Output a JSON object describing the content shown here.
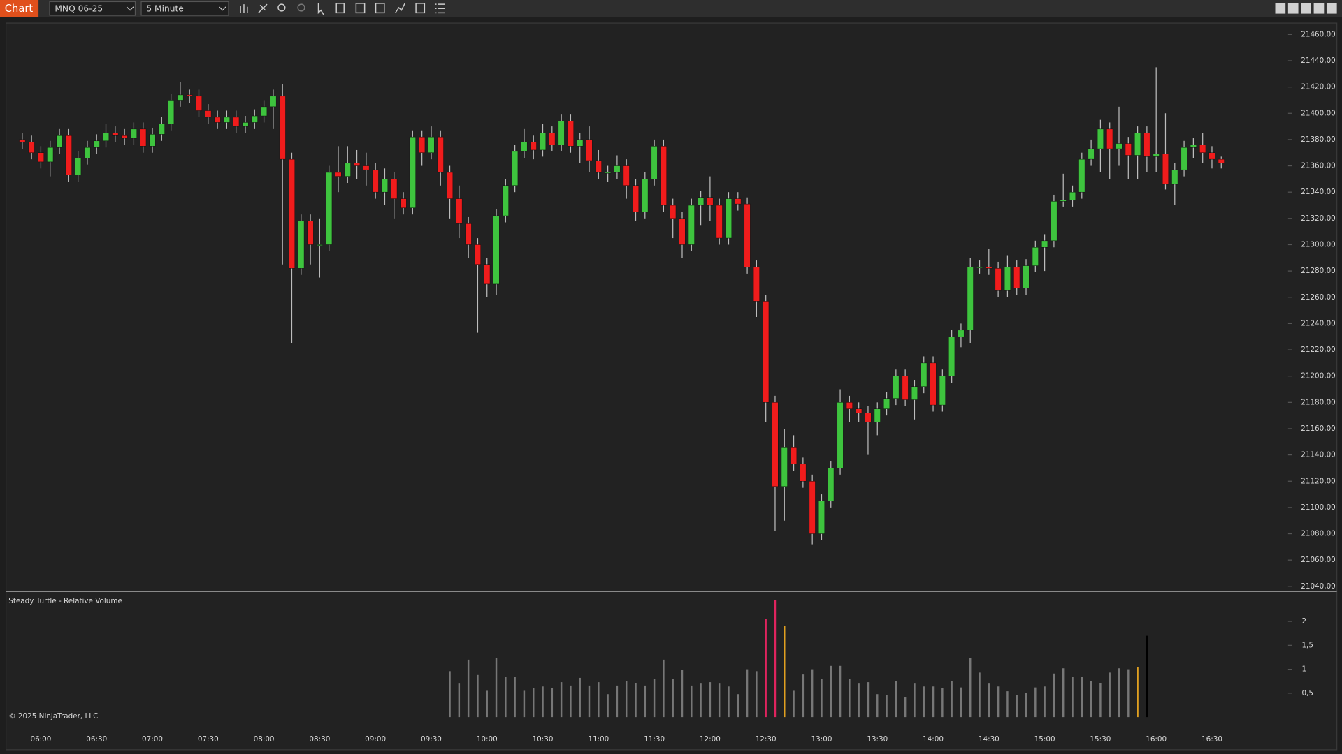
{
  "toolbar": {
    "tab": "Chart",
    "instrument": "MNQ 06-25",
    "interval": "5 Minute"
  },
  "footer": "© 2025 NinjaTrader, LLC",
  "chart_data": [
    {
      "type": "candlestick",
      "categories": [
        null,
        null,
        "06:00",
        null,
        null,
        null,
        null,
        null,
        "06:30",
        null,
        null,
        null,
        null,
        null,
        "07:00",
        null,
        null,
        null,
        null,
        null,
        "07:30",
        null,
        null,
        null,
        null,
        null,
        "08:00",
        null,
        null,
        null,
        null,
        null,
        "08:30",
        null,
        null,
        null,
        null,
        null,
        "09:00",
        null,
        null,
        null,
        null,
        null,
        "09:30",
        null,
        null,
        null,
        null,
        null,
        "10:00",
        null,
        null,
        null,
        null,
        null,
        "10:30",
        null,
        null,
        null,
        null,
        null,
        "11:00",
        null,
        null,
        null,
        null,
        null,
        "11:30",
        null,
        null,
        null,
        null,
        null,
        "12:00",
        null,
        null,
        null,
        null,
        null,
        "12:30",
        null,
        null,
        null,
        null,
        null,
        "13:00",
        null,
        null,
        null,
        null,
        null,
        "13:30",
        null,
        null,
        null,
        null,
        null,
        "14:00",
        null,
        null,
        null,
        null,
        null,
        "14:30",
        null,
        null,
        null,
        null,
        null,
        "15:00",
        null,
        null,
        null,
        null,
        null,
        "15:30",
        null,
        null,
        null,
        null,
        null,
        "16:00",
        null,
        null,
        null,
        null,
        null,
        "16:30",
        null
      ],
      "open": [
        21380,
        21378,
        21370,
        21363,
        21374,
        21383,
        21353,
        21366,
        21374,
        21379,
        21385,
        21383,
        21381,
        21388,
        21375,
        21384,
        21392,
        21410,
        21414,
        21413,
        21402,
        21397,
        21393,
        21397,
        21390,
        21393,
        21398,
        21405,
        21413,
        21365,
        21282,
        21318,
        21300,
        21300,
        21355,
        21352,
        21362,
        21360,
        21357,
        21340,
        21350,
        21335,
        21328,
        21382,
        21370,
        21382,
        21355,
        21335,
        21316,
        21300,
        21285,
        21270,
        21322,
        21345,
        21371,
        21378,
        21372,
        21385,
        21376,
        21394,
        21375,
        21380,
        21364,
        21355,
        21355,
        21360,
        21345,
        21325,
        21350,
        21375,
        21330,
        21320,
        21300,
        21330,
        21336,
        21330,
        21305,
        21335,
        21331,
        21283,
        21257,
        21180,
        21116,
        21146,
        21133,
        21120,
        21080,
        21105,
        21130,
        21180,
        21175,
        21172,
        21165,
        21175,
        21183,
        21200,
        21182,
        21192,
        21210,
        21178,
        21200,
        21230,
        21235,
        21283,
        21283,
        21282,
        21265,
        21283,
        21267,
        21284,
        21298,
        21303,
        21333,
        21334,
        21340,
        21365,
        21373,
        21388,
        21373,
        21377,
        21368,
        21385,
        21367,
        21369,
        21346,
        21357,
        21374,
        21376,
        21370,
        21365
      ],
      "high": [
        21385,
        21383,
        21375,
        21379,
        21388,
        21388,
        21371,
        21379,
        21384,
        21392,
        21390,
        21388,
        21393,
        21393,
        21389,
        21397,
        21415,
        21424,
        21418,
        21418,
        21407,
        21402,
        21402,
        21402,
        21398,
        21403,
        21410,
        21418,
        21422,
        21370,
        21323,
        21323,
        21320,
        21360,
        21375,
        21375,
        21372,
        21370,
        21362,
        21358,
        21355,
        21340,
        21387,
        21387,
        21390,
        21387,
        21360,
        21345,
        21321,
        21305,
        21290,
        21327,
        21350,
        21376,
        21388,
        21383,
        21392,
        21390,
        21399,
        21399,
        21385,
        21390,
        21372,
        21360,
        21368,
        21365,
        21350,
        21355,
        21380,
        21380,
        21335,
        21325,
        21335,
        21341,
        21352,
        21335,
        21340,
        21340,
        21336,
        21288,
        21262,
        21185,
        21160,
        21155,
        21138,
        21125,
        21110,
        21135,
        21190,
        21185,
        21180,
        21177,
        21180,
        21188,
        21205,
        21205,
        21197,
        21215,
        21215,
        21205,
        21235,
        21240,
        21290,
        21288,
        21297,
        21287,
        21292,
        21288,
        21289,
        21303,
        21308,
        21338,
        21354,
        21345,
        21370,
        21380,
        21395,
        21393,
        21405,
        21382,
        21390,
        21390,
        21435,
        21400,
        21362,
        21379,
        21381,
        21385,
        21375,
        21367
      ],
      "low": [
        21373,
        21365,
        21358,
        21352,
        21369,
        21348,
        21348,
        21361,
        21369,
        21374,
        21378,
        21376,
        21376,
        21370,
        21370,
        21379,
        21387,
        21405,
        21408,
        21397,
        21392,
        21388,
        21388,
        21385,
        21385,
        21388,
        21393,
        21388,
        21285,
        21225,
        21277,
        21285,
        21275,
        21295,
        21340,
        21347,
        21350,
        21345,
        21335,
        21330,
        21320,
        21323,
        21323,
        21360,
        21365,
        21345,
        21320,
        21305,
        21290,
        21233,
        21260,
        21262,
        21317,
        21340,
        21366,
        21365,
        21367,
        21371,
        21371,
        21370,
        21362,
        21355,
        21350,
        21348,
        21350,
        21335,
        21318,
        21320,
        21345,
        21325,
        21305,
        21290,
        21295,
        21315,
        21318,
        21300,
        21300,
        21326,
        21278,
        21245,
        21165,
        21082,
        21090,
        21128,
        21115,
        21072,
        21075,
        21100,
        21125,
        21165,
        21165,
        21140,
        21155,
        21170,
        21178,
        21177,
        21167,
        21187,
        21173,
        21173,
        21195,
        21222,
        21225,
        21278,
        21277,
        21260,
        21260,
        21262,
        21262,
        21279,
        21280,
        21298,
        21329,
        21329,
        21335,
        21360,
        21355,
        21350,
        21360,
        21350,
        21350,
        21355,
        21355,
        21342,
        21330,
        21352,
        21366,
        21362,
        21358,
        21358
      ],
      "close": [
        21378,
        21370,
        21363,
        21374,
        21383,
        21353,
        21366,
        21374,
        21379,
        21385,
        21383,
        21381,
        21388,
        21375,
        21384,
        21392,
        21410,
        21414,
        21413,
        21402,
        21397,
        21393,
        21397,
        21390,
        21393,
        21398,
        21405,
        21413,
        21365,
        21282,
        21318,
        21300,
        21300,
        21355,
        21352,
        21362,
        21360,
        21357,
        21340,
        21350,
        21335,
        21328,
        21382,
        21370,
        21382,
        21355,
        21335,
        21316,
        21300,
        21285,
        21270,
        21322,
        21345,
        21371,
        21378,
        21372,
        21385,
        21376,
        21394,
        21375,
        21380,
        21364,
        21355,
        21355,
        21360,
        21345,
        21325,
        21350,
        21375,
        21330,
        21320,
        21300,
        21330,
        21336,
        21330,
        21305,
        21335,
        21331,
        21283,
        21257,
        21180,
        21116,
        21146,
        21133,
        21120,
        21080,
        21105,
        21130,
        21180,
        21175,
        21172,
        21165,
        21175,
        21183,
        21200,
        21182,
        21192,
        21210,
        21178,
        21200,
        21230,
        21235,
        21283,
        21283,
        21282,
        21265,
        21283,
        21267,
        21284,
        21298,
        21303,
        21333,
        21334,
        21340,
        21365,
        21373,
        21388,
        21373,
        21377,
        21368,
        21385,
        21367,
        21369,
        21346,
        21357,
        21374,
        21376,
        21370,
        21365,
        21362
      ],
      "up_color": "#3ec43e",
      "down_color": "#f01c1c",
      "ylim": [
        21036,
        21468
      ],
      "yticks": [
        {
          "value": 21460,
          "label": "21460,00"
        },
        {
          "value": 21440,
          "label": "21440,00"
        },
        {
          "value": 21420,
          "label": "21420,00"
        },
        {
          "value": 21400,
          "label": "21400,00"
        },
        {
          "value": 21380,
          "label": "21380,00"
        },
        {
          "value": 21360,
          "label": "21360,00"
        },
        {
          "value": 21340,
          "label": "21340,00"
        },
        {
          "value": 21320,
          "label": "21320,00"
        },
        {
          "value": 21300,
          "label": "21300,00"
        },
        {
          "value": 21280,
          "label": "21280,00"
        },
        {
          "value": 21260,
          "label": "21260,00"
        },
        {
          "value": 21240,
          "label": "21240,00"
        },
        {
          "value": 21220,
          "label": "21220,00"
        },
        {
          "value": 21200,
          "label": "21200,00"
        },
        {
          "value": 21180,
          "label": "21180,00"
        },
        {
          "value": 21160,
          "label": "21160,00"
        },
        {
          "value": 21140,
          "label": "21140,00"
        },
        {
          "value": 21120,
          "label": "21120,00"
        },
        {
          "value": 21100,
          "label": "21100,00"
        },
        {
          "value": 21080,
          "label": "21080,00"
        },
        {
          "value": 21060,
          "label": "21060,00"
        },
        {
          "value": 21040,
          "label": "21040,00"
        }
      ],
      "grid": false
    },
    {
      "type": "bar",
      "title": "Steady Turtle - Relative Volume",
      "values": [
        null,
        null,
        null,
        null,
        null,
        null,
        null,
        null,
        null,
        null,
        null,
        null,
        null,
        null,
        null,
        null,
        null,
        null,
        null,
        null,
        null,
        null,
        null,
        null,
        null,
        null,
        null,
        null,
        null,
        null,
        null,
        null,
        null,
        null,
        null,
        null,
        null,
        null,
        null,
        null,
        null,
        null,
        null,
        null,
        null,
        null,
        0.96,
        0.7,
        1.2,
        0.88,
        0.55,
        1.23,
        0.84,
        0.84,
        0.55,
        0.6,
        0.64,
        0.6,
        0.73,
        0.66,
        0.82,
        0.66,
        0.73,
        0.48,
        0.66,
        0.75,
        0.71,
        0.66,
        0.79,
        1.2,
        0.8,
        0.98,
        0.66,
        0.7,
        0.73,
        0.7,
        0.64,
        0.48,
        1.0,
        0.96,
        2.05,
        2.45,
        1.91,
        0.55,
        0.89,
        1.0,
        0.79,
        1.07,
        1.07,
        0.79,
        0.7,
        0.73,
        0.48,
        0.46,
        0.75,
        0.41,
        0.7,
        0.64,
        0.64,
        0.6,
        0.75,
        0.62,
        1.23,
        0.93,
        0.7,
        0.64,
        0.54,
        0.46,
        0.5,
        0.62,
        0.64,
        0.91,
        1.02,
        0.84,
        0.84,
        0.75,
        0.71,
        0.93,
        1.02,
        1.0,
        1.05,
        1.7,
        null,
        null,
        null,
        null,
        null,
        null,
        null,
        null
      ],
      "colors": [
        null,
        null,
        null,
        null,
        null,
        null,
        null,
        null,
        null,
        null,
        null,
        null,
        null,
        null,
        null,
        null,
        null,
        null,
        null,
        null,
        null,
        null,
        null,
        null,
        null,
        null,
        null,
        null,
        null,
        null,
        null,
        null,
        null,
        null,
        null,
        null,
        null,
        null,
        null,
        null,
        null,
        null,
        null,
        null,
        null,
        null,
        "#777",
        "#777",
        "#777",
        "#777",
        "#777",
        "#777",
        "#777",
        "#777",
        "#777",
        "#777",
        "#777",
        "#777",
        "#777",
        "#777",
        "#777",
        "#777",
        "#777",
        "#777",
        "#777",
        "#777",
        "#777",
        "#777",
        "#777",
        "#777",
        "#777",
        "#777",
        "#777",
        "#777",
        "#777",
        "#777",
        "#777",
        "#777",
        "#777",
        "#777",
        "#e0245e",
        "#e0245e",
        "#e0a020",
        "#777",
        "#777",
        "#777",
        "#777",
        "#777",
        "#777",
        "#777",
        "#777",
        "#777",
        "#777",
        "#777",
        "#777",
        "#777",
        "#777",
        "#777",
        "#777",
        "#777",
        "#777",
        "#777",
        "#777",
        "#777",
        "#777",
        "#777",
        "#777",
        "#777",
        "#777",
        "#777",
        "#777",
        "#777",
        "#777",
        "#777",
        "#777",
        "#777",
        "#777",
        "#777",
        "#777",
        "#777",
        "#e0a020",
        null,
        null,
        null,
        null,
        null,
        null,
        null,
        null
      ],
      "ylim": [
        -0.2,
        2.57
      ],
      "yticks": [
        2,
        {
          "value": 1.5,
          "label": "1,5"
        },
        1,
        {
          "value": 0.5,
          "label": "0,5"
        }
      ]
    }
  ]
}
